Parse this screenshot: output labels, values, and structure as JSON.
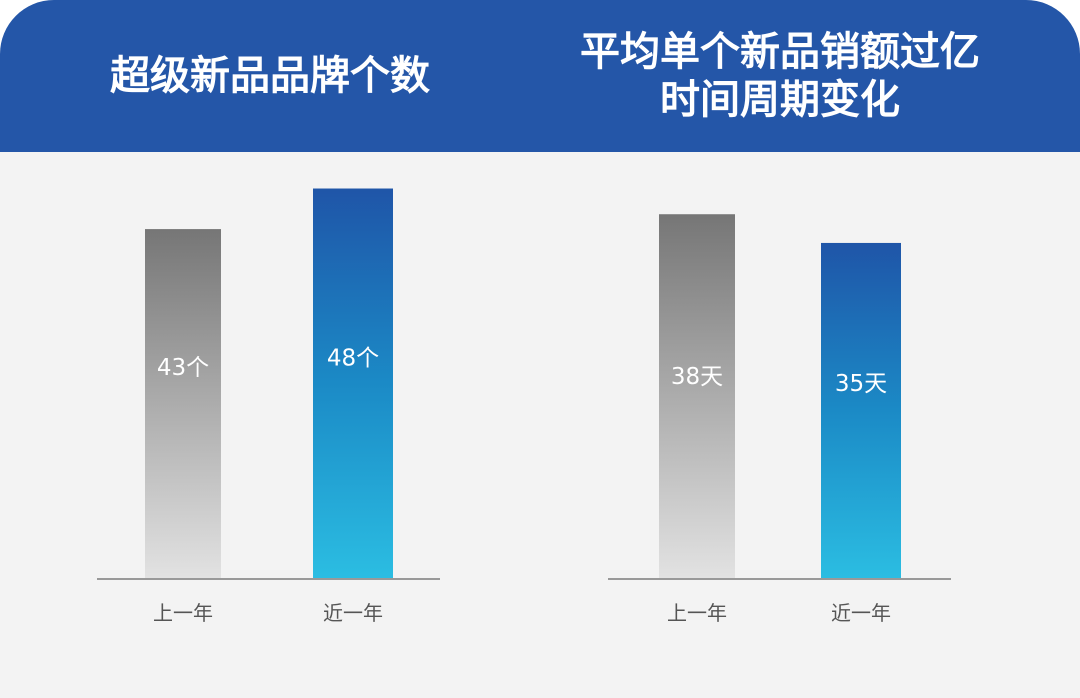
{
  "chart_data": [
    {
      "type": "bar",
      "title": "超级新品品牌个数",
      "categories": [
        "上一年",
        "近一年"
      ],
      "values": [
        43,
        48
      ],
      "data_labels": [
        "43个",
        "48个"
      ],
      "colors": [
        "#777777",
        "#1f5fae"
      ],
      "ylim": [
        0,
        52.5
      ]
    },
    {
      "type": "bar",
      "title_lines": [
        "平均单个新品销额过亿",
        "时间周期变化"
      ],
      "categories": [
        "上一年",
        "近一年"
      ],
      "values": [
        38,
        35
      ],
      "data_labels": [
        "38天",
        "35天"
      ],
      "colors": [
        "#777777",
        "#1f5fae"
      ],
      "ylim": [
        0,
        44.5
      ]
    }
  ]
}
